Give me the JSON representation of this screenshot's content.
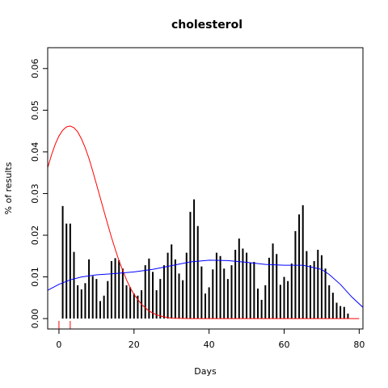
{
  "chart_data": {
    "type": "bar",
    "title": "cholesterol",
    "xlabel": "Days",
    "ylabel": "% of results",
    "xlim": [
      -3,
      81
    ],
    "ylim": [
      -0.0025,
      0.065
    ],
    "xticks": [
      0,
      20,
      40,
      60,
      80
    ],
    "yticks": [
      0.0,
      0.01,
      0.02,
      0.03,
      0.04,
      0.05,
      0.06
    ],
    "xtick_labels": [
      "0",
      "20",
      "40",
      "60",
      "80"
    ],
    "ytick_labels": [
      "0.00",
      "0.01",
      "0.02",
      "0.03",
      "0.04",
      "0.05",
      "0.06"
    ],
    "grid": false,
    "bars": {
      "x": [
        1,
        2,
        3,
        4,
        5,
        6,
        7,
        8,
        9,
        10,
        11,
        12,
        13,
        14,
        15,
        16,
        17,
        18,
        19,
        20,
        21,
        22,
        23,
        24,
        25,
        26,
        27,
        28,
        29,
        30,
        31,
        32,
        33,
        34,
        35,
        36,
        37,
        38,
        39,
        40,
        41,
        42,
        43,
        44,
        45,
        46,
        47,
        48,
        49,
        50,
        51,
        52,
        53,
        54,
        55,
        56,
        57,
        58,
        59,
        60,
        61,
        62,
        63,
        64,
        65,
        66,
        67,
        68,
        69,
        70,
        71,
        72,
        73,
        74,
        75,
        76,
        77
      ],
      "values": [
        0.027,
        0.0228,
        0.0228,
        0.016,
        0.008,
        0.007,
        0.0085,
        0.0142,
        0.0102,
        0.0095,
        0.0042,
        0.0055,
        0.009,
        0.0138,
        0.0145,
        0.014,
        0.012,
        0.008,
        0.0075,
        0.006,
        0.0055,
        0.0068,
        0.0128,
        0.0144,
        0.0112,
        0.0068,
        0.0095,
        0.0128,
        0.0158,
        0.0178,
        0.0142,
        0.0108,
        0.0092,
        0.0158,
        0.0256,
        0.0286,
        0.0222,
        0.0125,
        0.006,
        0.0075,
        0.0118,
        0.0158,
        0.015,
        0.012,
        0.0095,
        0.0128,
        0.0165,
        0.0192,
        0.0168,
        0.0158,
        0.0134,
        0.0136,
        0.0072,
        0.0045,
        0.008,
        0.0146,
        0.018,
        0.0155,
        0.0081,
        0.01,
        0.009,
        0.0132,
        0.021,
        0.025,
        0.0272,
        0.0162,
        0.0128,
        0.0138,
        0.0165,
        0.0152,
        0.012,
        0.008,
        0.0062,
        0.0038,
        0.003,
        0.0028,
        0.0012
      ],
      "color": "#000000"
    },
    "series": [
      {
        "color": "#ff0000",
        "x": [
          -3,
          -2,
          -1,
          0,
          1,
          2,
          3,
          4,
          5,
          6,
          7,
          8,
          9,
          10,
          11,
          12,
          13,
          14,
          15,
          16,
          17,
          18,
          19,
          20,
          22,
          24,
          26,
          28,
          30,
          35,
          40,
          50,
          60,
          70,
          80
        ],
        "values": [
          0.0362,
          0.0392,
          0.0418,
          0.0438,
          0.0452,
          0.046,
          0.0462,
          0.0458,
          0.0448,
          0.0431,
          0.041,
          0.0384,
          0.0354,
          0.0322,
          0.029,
          0.0258,
          0.0226,
          0.0195,
          0.0166,
          0.0139,
          0.0115,
          0.0093,
          0.0074,
          0.0058,
          0.0034,
          0.0018,
          0.0009,
          0.0004,
          0.0001,
          0.0,
          0.0,
          0.0,
          0.0,
          0.0,
          0.0
        ]
      },
      {
        "color": "#0000ff",
        "x": [
          -3,
          0,
          3,
          6,
          10,
          15,
          20,
          25,
          30,
          35,
          40,
          45,
          50,
          55,
          60,
          65,
          70,
          72,
          75,
          78,
          81
        ],
        "values": [
          0.0068,
          0.0082,
          0.0093,
          0.01,
          0.0105,
          0.0108,
          0.0112,
          0.0118,
          0.0127,
          0.0136,
          0.014,
          0.0139,
          0.0135,
          0.013,
          0.0128,
          0.0128,
          0.0118,
          0.0106,
          0.0082,
          0.0052,
          0.0027
        ]
      }
    ],
    "rug": [
      {
        "x": 0,
        "color": "#ff0000"
      },
      {
        "x": 3,
        "color": "#ff0000"
      }
    ]
  }
}
